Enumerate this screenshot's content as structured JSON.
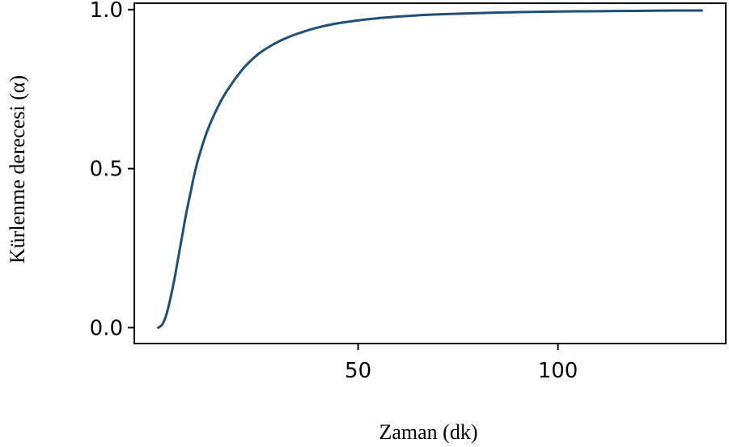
{
  "chart_data": {
    "type": "line",
    "title": "",
    "xlabel": "Zaman (dk)",
    "ylabel": "Kürlenme derecesi (α)",
    "xlim": [
      -6,
      142
    ],
    "ylim": [
      -0.05,
      1.02
    ],
    "x_ticks": [
      {
        "value": 50,
        "label": "50"
      },
      {
        "value": 100,
        "label": "100"
      }
    ],
    "y_ticks": [
      {
        "value": 0.0,
        "label": "0.0"
      },
      {
        "value": 0.5,
        "label": "0.5"
      },
      {
        "value": 1.0,
        "label": "1.0"
      }
    ],
    "grid": false,
    "series": [
      {
        "color": "#1f4e79",
        "x": [
          0,
          1,
          2,
          3,
          4,
          5,
          6,
          7,
          8,
          9,
          10,
          12,
          14,
          16,
          18,
          20,
          22,
          25,
          28,
          31,
          35,
          40,
          45,
          50,
          55,
          60,
          65,
          70,
          80,
          90,
          100,
          110,
          120,
          130,
          136
        ],
        "y": [
          0.0,
          0.01,
          0.04,
          0.09,
          0.15,
          0.22,
          0.29,
          0.36,
          0.42,
          0.48,
          0.53,
          0.61,
          0.67,
          0.72,
          0.76,
          0.795,
          0.825,
          0.86,
          0.885,
          0.905,
          0.925,
          0.944,
          0.957,
          0.966,
          0.973,
          0.978,
          0.982,
          0.985,
          0.989,
          0.992,
          0.994,
          0.995,
          0.996,
          0.997,
          0.997
        ]
      }
    ]
  }
}
